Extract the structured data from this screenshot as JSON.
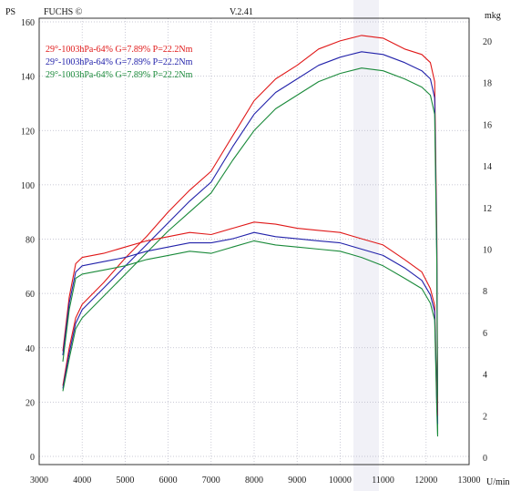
{
  "header": {
    "left_unit": "PS",
    "brand": "FUCHS ©",
    "version": "V.2.41",
    "right_unit": "mkg",
    "x_unit": "U/min"
  },
  "chart_data": {
    "type": "line",
    "title": "",
    "xlabel": "U/min",
    "ylabel": "PS",
    "y2label": "mkg",
    "xlim": [
      3000,
      13000
    ],
    "ylim": [
      0,
      160
    ],
    "y2lim": [
      0,
      20.5
    ],
    "x_ticks": [
      3000,
      4000,
      5000,
      6000,
      7000,
      8000,
      9000,
      10000,
      11000,
      12000,
      13000
    ],
    "y_ticks": [
      0,
      20,
      40,
      60,
      80,
      100,
      120,
      140,
      160
    ],
    "y2_ticks": [
      0,
      2,
      4,
      6,
      8,
      10,
      12,
      14,
      16,
      18,
      20
    ],
    "grid": true,
    "legend_position": "top-left",
    "legend": [
      {
        "text": "29°-1003hPa-64% G=7.89% P=22.2Nm",
        "color": "#e01818"
      },
      {
        "text": "29°-1003hPa-64% G=7.89% P=22.2Nm",
        "color": "#2222aa"
      },
      {
        "text": "29°-1003hPa-64% G=7.89% P=22.2Nm",
        "color": "#1a8a3a"
      }
    ],
    "series": [
      {
        "kind": "power",
        "axis": "left",
        "color": "#e01818",
        "points": [
          [
            3550,
            26
          ],
          [
            3700,
            40
          ],
          [
            3850,
            51
          ],
          [
            4000,
            56
          ],
          [
            4500,
            64
          ],
          [
            5000,
            73
          ],
          [
            5500,
            81
          ],
          [
            6000,
            90
          ],
          [
            6500,
            98
          ],
          [
            7000,
            105
          ],
          [
            7500,
            118
          ],
          [
            8000,
            131
          ],
          [
            8500,
            139
          ],
          [
            9000,
            144
          ],
          [
            9500,
            150
          ],
          [
            10000,
            153
          ],
          [
            10500,
            155
          ],
          [
            11000,
            154
          ],
          [
            11500,
            150
          ],
          [
            11900,
            148
          ],
          [
            12100,
            145
          ],
          [
            12200,
            138
          ],
          [
            12250,
            80
          ],
          [
            12270,
            15
          ]
        ]
      },
      {
        "kind": "power",
        "axis": "left",
        "color": "#2222aa",
        "points": [
          [
            3550,
            25
          ],
          [
            3700,
            38
          ],
          [
            3850,
            49
          ],
          [
            4000,
            54
          ],
          [
            4500,
            62
          ],
          [
            5000,
            70
          ],
          [
            5500,
            78
          ],
          [
            6000,
            86
          ],
          [
            6500,
            94
          ],
          [
            7000,
            101
          ],
          [
            7500,
            114
          ],
          [
            8000,
            126
          ],
          [
            8500,
            134
          ],
          [
            9000,
            139
          ],
          [
            9500,
            144
          ],
          [
            10000,
            147
          ],
          [
            10500,
            149
          ],
          [
            11000,
            148
          ],
          [
            11500,
            145
          ],
          [
            11900,
            142
          ],
          [
            12100,
            139
          ],
          [
            12200,
            132
          ],
          [
            12250,
            75
          ],
          [
            12270,
            12
          ]
        ]
      },
      {
        "kind": "power",
        "axis": "left",
        "color": "#1a8a3a",
        "points": [
          [
            3550,
            24
          ],
          [
            3700,
            36
          ],
          [
            3850,
            47
          ],
          [
            4000,
            51
          ],
          [
            4500,
            59
          ],
          [
            5000,
            67
          ],
          [
            5500,
            75
          ],
          [
            6000,
            83
          ],
          [
            6500,
            90
          ],
          [
            7000,
            97
          ],
          [
            7500,
            109
          ],
          [
            8000,
            120
          ],
          [
            8500,
            128
          ],
          [
            9000,
            133
          ],
          [
            9500,
            138
          ],
          [
            10000,
            141
          ],
          [
            10500,
            143
          ],
          [
            11000,
            142
          ],
          [
            11500,
            139
          ],
          [
            11900,
            136
          ],
          [
            12100,
            133
          ],
          [
            12200,
            126
          ],
          [
            12250,
            70
          ],
          [
            12270,
            8
          ]
        ]
      },
      {
        "kind": "torque",
        "axis": "right",
        "color": "#e01818",
        "points": [
          [
            3550,
            5.1
          ],
          [
            3700,
            7.7
          ],
          [
            3850,
            9.3
          ],
          [
            4000,
            9.6
          ],
          [
            4500,
            9.8
          ],
          [
            5000,
            10.1
          ],
          [
            5500,
            10.4
          ],
          [
            6000,
            10.6
          ],
          [
            6500,
            10.8
          ],
          [
            7000,
            10.7
          ],
          [
            7500,
            11.0
          ],
          [
            8000,
            11.3
          ],
          [
            8500,
            11.2
          ],
          [
            9000,
            11.0
          ],
          [
            9500,
            10.9
          ],
          [
            10000,
            10.8
          ],
          [
            10500,
            10.5
          ],
          [
            11000,
            10.2
          ],
          [
            11500,
            9.5
          ],
          [
            11900,
            8.9
          ],
          [
            12100,
            8.1
          ],
          [
            12200,
            7.3
          ],
          [
            12250,
            3.0
          ],
          [
            12270,
            2.0
          ]
        ]
      },
      {
        "kind": "torque",
        "axis": "right",
        "color": "#2222aa",
        "points": [
          [
            3550,
            4.9
          ],
          [
            3700,
            7.4
          ],
          [
            3850,
            8.9
          ],
          [
            4000,
            9.2
          ],
          [
            4500,
            9.4
          ],
          [
            5000,
            9.6
          ],
          [
            5500,
            9.9
          ],
          [
            6000,
            10.1
          ],
          [
            6500,
            10.3
          ],
          [
            7000,
            10.3
          ],
          [
            7500,
            10.5
          ],
          [
            8000,
            10.8
          ],
          [
            8500,
            10.6
          ],
          [
            9000,
            10.5
          ],
          [
            9500,
            10.4
          ],
          [
            10000,
            10.3
          ],
          [
            10500,
            10.0
          ],
          [
            11000,
            9.7
          ],
          [
            11500,
            9.1
          ],
          [
            11900,
            8.5
          ],
          [
            12100,
            7.8
          ],
          [
            12200,
            7.0
          ],
          [
            12250,
            2.6
          ],
          [
            12270,
            1.6
          ]
        ]
      },
      {
        "kind": "torque",
        "axis": "right",
        "color": "#1a8a3a",
        "points": [
          [
            3550,
            4.6
          ],
          [
            3700,
            7.1
          ],
          [
            3850,
            8.6
          ],
          [
            4000,
            8.8
          ],
          [
            4500,
            9.0
          ],
          [
            5000,
            9.2
          ],
          [
            5500,
            9.5
          ],
          [
            6000,
            9.7
          ],
          [
            6500,
            9.9
          ],
          [
            7000,
            9.8
          ],
          [
            7500,
            10.1
          ],
          [
            8000,
            10.4
          ],
          [
            8500,
            10.2
          ],
          [
            9000,
            10.1
          ],
          [
            9500,
            10.0
          ],
          [
            10000,
            9.9
          ],
          [
            10500,
            9.6
          ],
          [
            11000,
            9.2
          ],
          [
            11500,
            8.6
          ],
          [
            11900,
            8.1
          ],
          [
            12100,
            7.4
          ],
          [
            12200,
            6.6
          ],
          [
            12250,
            2.2
          ],
          [
            12270,
            1.0
          ]
        ]
      }
    ]
  }
}
